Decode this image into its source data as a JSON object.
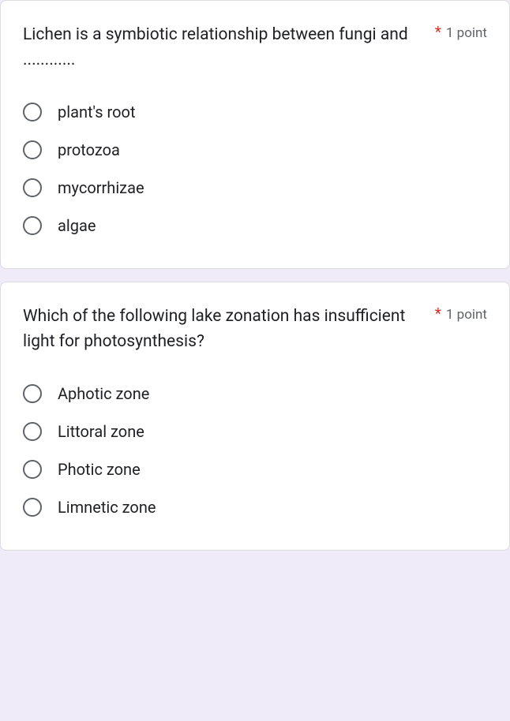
{
  "questions": [
    {
      "text": "Lichen is a symbiotic relationship between fungi and ............",
      "required_mark": "*",
      "points": "1 point",
      "options": [
        "plant's root",
        "protozoa",
        "mycorrhizae",
        "algae"
      ]
    },
    {
      "text": "Which of the following lake zonation has insufficient light for photosynthesis?",
      "required_mark": "*",
      "points": "1 point",
      "options": [
        "Aphotic zone",
        "Littoral zone",
        "Photic zone",
        "Limnetic zone"
      ]
    }
  ],
  "colors": {
    "background": "#f0ebf8",
    "card_bg": "#ffffff",
    "card_border": "#dadce0",
    "text_primary": "#202124",
    "text_secondary": "#5f6368",
    "required": "#d93025",
    "radio_border": "#5f6368"
  }
}
